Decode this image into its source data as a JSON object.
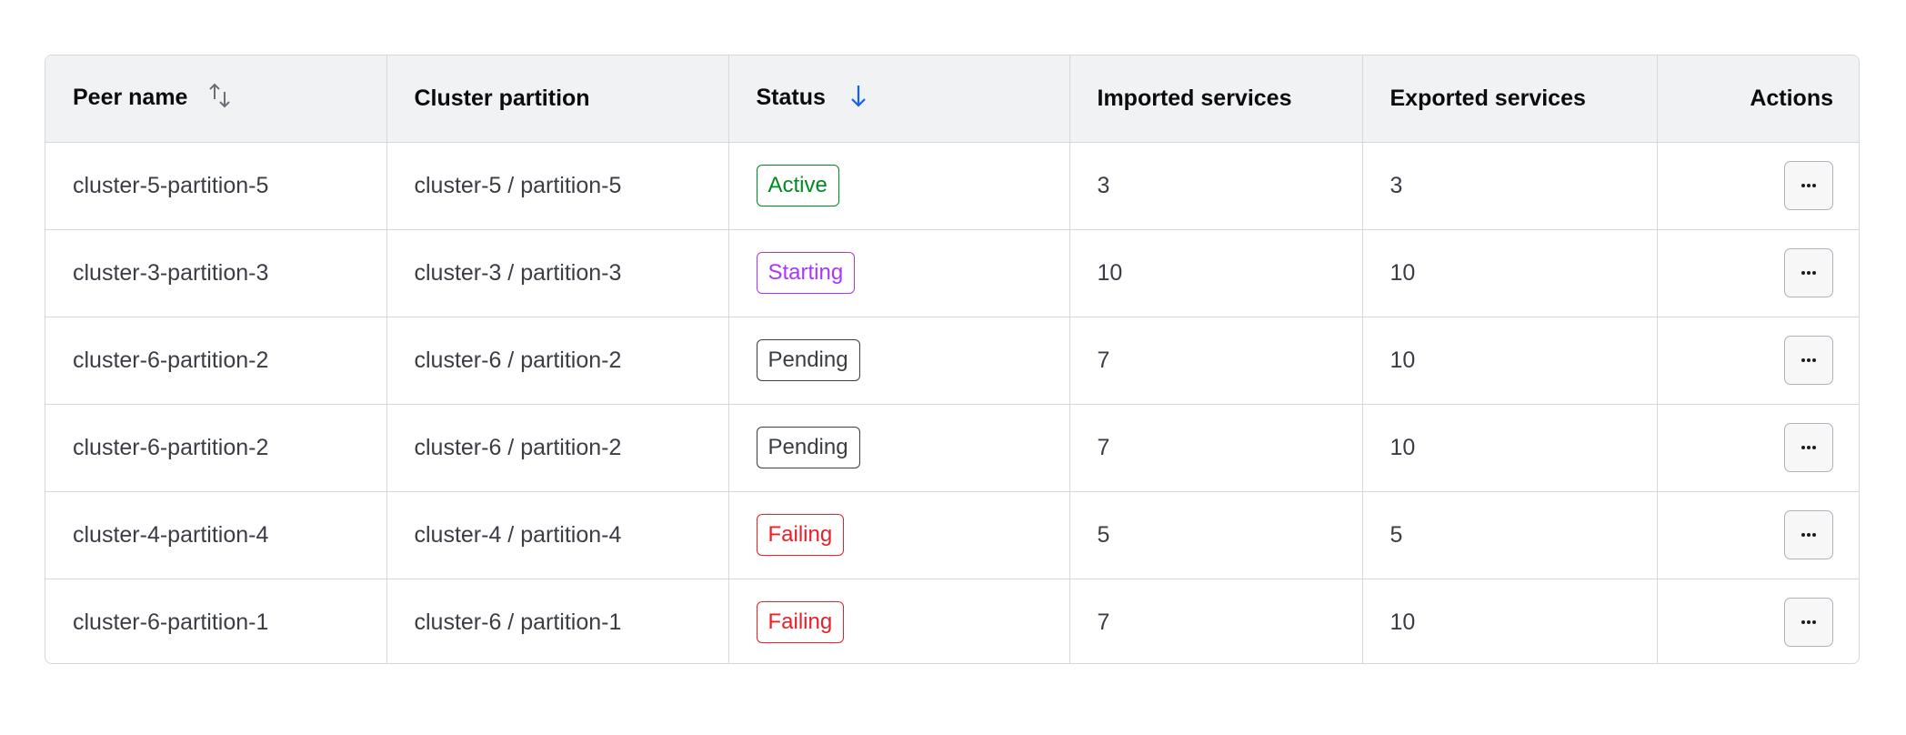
{
  "colors": {
    "active": "#008a22",
    "starting": "#a737ff",
    "pending": "#3b3d45",
    "failing": "#e52228",
    "sort_active": "#1060ff",
    "header_bg": "#f1f2f4"
  },
  "headers": {
    "peer_name": "Peer name",
    "cluster_partition": "Cluster partition",
    "status": "Status",
    "imported": "Imported services",
    "exported": "Exported services",
    "actions": "Actions"
  },
  "sort": {
    "peer_name": "unsorted",
    "status": "descending"
  },
  "rows": [
    {
      "peer": "cluster-5-partition-5",
      "partition": "cluster-5 / partition-5",
      "status": "Active",
      "kind": "active",
      "imported": "3",
      "exported": "3"
    },
    {
      "peer": "cluster-3-partition-3",
      "partition": "cluster-3 / partition-3",
      "status": "Starting",
      "kind": "starting",
      "imported": "10",
      "exported": "10"
    },
    {
      "peer": "cluster-6-partition-2",
      "partition": "cluster-6 / partition-2",
      "status": "Pending",
      "kind": "pending",
      "imported": "7",
      "exported": "10"
    },
    {
      "peer": "cluster-6-partition-2",
      "partition": "cluster-6 / partition-2",
      "status": "Pending",
      "kind": "pending",
      "imported": "7",
      "exported": "10"
    },
    {
      "peer": "cluster-4-partition-4",
      "partition": "cluster-4 / partition-4",
      "status": "Failing",
      "kind": "failing",
      "imported": "5",
      "exported": "5"
    },
    {
      "peer": "cluster-6-partition-1",
      "partition": "cluster-6 / partition-1",
      "status": "Failing",
      "kind": "failing",
      "imported": "7",
      "exported": "10"
    }
  ],
  "row_action_icon": "more-horizontal-icon"
}
